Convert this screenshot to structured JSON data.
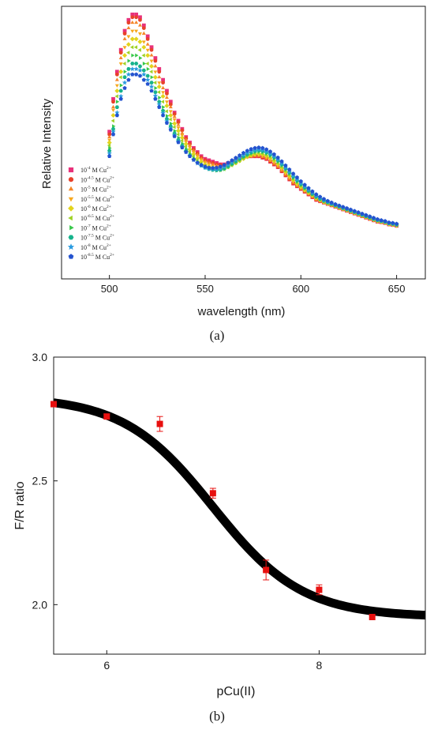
{
  "panel_a_label": "(a)",
  "panel_b_label": "(b)",
  "chart_data": [
    {
      "type": "scatter",
      "ylabel": "Relative Intensity",
      "xlabel": "wavelength (nm)",
      "xlim": [
        475,
        665
      ],
      "ylim": [
        0,
        1
      ],
      "xticks": [
        500,
        550,
        600,
        650
      ],
      "y_tick_labels_shown": false,
      "legend_placement": "lower-left",
      "wavelengths": [
        500,
        502,
        504,
        506,
        508,
        510,
        512,
        514,
        516,
        518,
        520,
        522,
        524,
        526,
        528,
        530,
        532,
        534,
        536,
        538,
        540,
        542,
        544,
        546,
        548,
        550,
        552,
        554,
        556,
        558,
        560,
        562,
        564,
        566,
        568,
        570,
        572,
        574,
        576,
        578,
        580,
        582,
        584,
        586,
        588,
        590,
        592,
        594,
        596,
        598,
        600,
        602,
        604,
        606,
        608,
        610,
        612,
        614,
        616,
        618,
        620,
        622,
        624,
        626,
        628,
        630,
        632,
        634,
        636,
        638,
        640,
        642,
        644,
        646,
        648,
        650
      ],
      "series": [
        {
          "name": "10^-4 M Cu2+",
          "exp": "-4",
          "color": "#e8317a",
          "marker": "square",
          "values": [
            0.54,
            0.66,
            0.76,
            0.84,
            0.91,
            0.95,
            0.97,
            0.97,
            0.96,
            0.93,
            0.89,
            0.85,
            0.81,
            0.77,
            0.73,
            0.69,
            0.65,
            0.61,
            0.58,
            0.55,
            0.52,
            0.5,
            0.48,
            0.465,
            0.45,
            0.44,
            0.435,
            0.43,
            0.425,
            0.42,
            0.42,
            0.425,
            0.43,
            0.435,
            0.44,
            0.445,
            0.45,
            0.45,
            0.45,
            0.45,
            0.445,
            0.44,
            0.43,
            0.42,
            0.41,
            0.395,
            0.38,
            0.365,
            0.35,
            0.34,
            0.33,
            0.32,
            0.31,
            0.3,
            0.29,
            0.285,
            0.28,
            0.275,
            0.27,
            0.265,
            0.26,
            0.255,
            0.25,
            0.245,
            0.24,
            0.235,
            0.23,
            0.225,
            0.22,
            0.215,
            0.21,
            0.208,
            0.205,
            0.2,
            0.198,
            0.195
          ]
        },
        {
          "name": "10^-4.5 M Cu2+",
          "exp": "-4.5",
          "color": "#e8402a",
          "marker": "circle",
          "values": [
            0.53,
            0.65,
            0.75,
            0.83,
            0.9,
            0.94,
            0.96,
            0.96,
            0.95,
            0.92,
            0.88,
            0.84,
            0.8,
            0.76,
            0.72,
            0.68,
            0.64,
            0.605,
            0.575,
            0.545,
            0.515,
            0.495,
            0.475,
            0.46,
            0.445,
            0.435,
            0.43,
            0.425,
            0.42,
            0.418,
            0.418,
            0.422,
            0.428,
            0.433,
            0.438,
            0.443,
            0.448,
            0.45,
            0.45,
            0.45,
            0.445,
            0.44,
            0.43,
            0.42,
            0.41,
            0.395,
            0.38,
            0.365,
            0.35,
            0.34,
            0.33,
            0.32,
            0.31,
            0.3,
            0.29,
            0.285,
            0.28,
            0.275,
            0.27,
            0.265,
            0.26,
            0.255,
            0.25,
            0.245,
            0.24,
            0.235,
            0.23,
            0.225,
            0.22,
            0.215,
            0.21,
            0.208,
            0.205,
            0.2,
            0.198,
            0.195
          ]
        },
        {
          "name": "10^-5 M Cu2+",
          "exp": "-5",
          "color": "#f5862a",
          "marker": "triangle-up",
          "values": [
            0.52,
            0.63,
            0.73,
            0.81,
            0.88,
            0.92,
            0.94,
            0.94,
            0.93,
            0.9,
            0.86,
            0.82,
            0.78,
            0.74,
            0.7,
            0.665,
            0.63,
            0.595,
            0.565,
            0.535,
            0.51,
            0.49,
            0.47,
            0.455,
            0.44,
            0.43,
            0.425,
            0.42,
            0.415,
            0.413,
            0.413,
            0.418,
            0.425,
            0.43,
            0.436,
            0.442,
            0.447,
            0.45,
            0.452,
            0.452,
            0.448,
            0.442,
            0.433,
            0.423,
            0.412,
            0.398,
            0.383,
            0.368,
            0.353,
            0.342,
            0.332,
            0.322,
            0.312,
            0.302,
            0.292,
            0.286,
            0.28,
            0.275,
            0.27,
            0.265,
            0.26,
            0.255,
            0.25,
            0.245,
            0.24,
            0.235,
            0.23,
            0.225,
            0.22,
            0.215,
            0.21,
            0.208,
            0.205,
            0.2,
            0.198,
            0.195
          ]
        },
        {
          "name": "10^-5.5 M Cu2+",
          "exp": "-5.5",
          "color": "#f7a81e",
          "marker": "triangle-down",
          "values": [
            0.51,
            0.62,
            0.71,
            0.79,
            0.85,
            0.89,
            0.91,
            0.91,
            0.9,
            0.87,
            0.84,
            0.8,
            0.76,
            0.72,
            0.685,
            0.65,
            0.615,
            0.585,
            0.555,
            0.527,
            0.503,
            0.483,
            0.465,
            0.45,
            0.437,
            0.427,
            0.42,
            0.415,
            0.41,
            0.408,
            0.41,
            0.415,
            0.422,
            0.428,
            0.435,
            0.442,
            0.448,
            0.452,
            0.455,
            0.455,
            0.452,
            0.446,
            0.438,
            0.428,
            0.416,
            0.402,
            0.387,
            0.372,
            0.357,
            0.345,
            0.334,
            0.324,
            0.314,
            0.304,
            0.294,
            0.287,
            0.281,
            0.276,
            0.271,
            0.266,
            0.261,
            0.256,
            0.251,
            0.246,
            0.241,
            0.236,
            0.231,
            0.226,
            0.221,
            0.216,
            0.211,
            0.208,
            0.205,
            0.2,
            0.198,
            0.195
          ]
        },
        {
          "name": "10^-6 M Cu2+",
          "exp": "-6",
          "color": "#e2d41c",
          "marker": "diamond",
          "values": [
            0.5,
            0.6,
            0.69,
            0.76,
            0.82,
            0.86,
            0.88,
            0.88,
            0.87,
            0.85,
            0.82,
            0.78,
            0.74,
            0.705,
            0.67,
            0.635,
            0.6,
            0.57,
            0.543,
            0.518,
            0.495,
            0.475,
            0.458,
            0.443,
            0.43,
            0.42,
            0.413,
            0.408,
            0.404,
            0.403,
            0.405,
            0.411,
            0.418,
            0.425,
            0.433,
            0.441,
            0.448,
            0.453,
            0.457,
            0.458,
            0.456,
            0.451,
            0.443,
            0.433,
            0.421,
            0.407,
            0.392,
            0.377,
            0.362,
            0.349,
            0.337,
            0.326,
            0.316,
            0.306,
            0.296,
            0.289,
            0.282,
            0.277,
            0.272,
            0.267,
            0.262,
            0.257,
            0.252,
            0.247,
            0.242,
            0.237,
            0.232,
            0.227,
            0.222,
            0.217,
            0.212,
            0.209,
            0.206,
            0.201,
            0.199,
            0.196
          ]
        },
        {
          "name": "10^-6.5 M Cu2+",
          "exp": "-6.5",
          "color": "#9ed226",
          "marker": "triangle-left",
          "values": [
            0.49,
            0.58,
            0.67,
            0.74,
            0.79,
            0.83,
            0.85,
            0.85,
            0.84,
            0.82,
            0.79,
            0.76,
            0.72,
            0.685,
            0.65,
            0.615,
            0.585,
            0.557,
            0.53,
            0.507,
            0.486,
            0.467,
            0.45,
            0.436,
            0.424,
            0.414,
            0.407,
            0.402,
            0.399,
            0.399,
            0.402,
            0.409,
            0.417,
            0.425,
            0.433,
            0.442,
            0.45,
            0.456,
            0.46,
            0.462,
            0.46,
            0.455,
            0.447,
            0.437,
            0.425,
            0.411,
            0.396,
            0.381,
            0.366,
            0.353,
            0.341,
            0.329,
            0.318,
            0.308,
            0.298,
            0.29,
            0.283,
            0.278,
            0.273,
            0.268,
            0.263,
            0.258,
            0.253,
            0.248,
            0.243,
            0.238,
            0.233,
            0.228,
            0.223,
            0.218,
            0.213,
            0.21,
            0.207,
            0.202,
            0.2,
            0.197
          ]
        },
        {
          "name": "10^-7 M Cu2+",
          "exp": "-7",
          "color": "#38c84a",
          "marker": "triangle-right",
          "values": [
            0.48,
            0.56,
            0.65,
            0.71,
            0.76,
            0.8,
            0.82,
            0.82,
            0.81,
            0.79,
            0.77,
            0.74,
            0.7,
            0.665,
            0.63,
            0.598,
            0.57,
            0.543,
            0.518,
            0.496,
            0.476,
            0.458,
            0.442,
            0.429,
            0.418,
            0.409,
            0.403,
            0.399,
            0.397,
            0.398,
            0.402,
            0.41,
            0.419,
            0.428,
            0.437,
            0.446,
            0.454,
            0.46,
            0.465,
            0.467,
            0.465,
            0.46,
            0.452,
            0.442,
            0.43,
            0.416,
            0.401,
            0.386,
            0.371,
            0.357,
            0.344,
            0.332,
            0.321,
            0.31,
            0.3,
            0.292,
            0.285,
            0.279,
            0.274,
            0.269,
            0.264,
            0.259,
            0.254,
            0.249,
            0.244,
            0.239,
            0.234,
            0.229,
            0.224,
            0.219,
            0.214,
            0.211,
            0.208,
            0.203,
            0.201,
            0.198
          ]
        },
        {
          "name": "10^-7.5 M Cu2+",
          "exp": "-7.5",
          "color": "#16b38c",
          "marker": "hexagon",
          "values": [
            0.47,
            0.55,
            0.63,
            0.69,
            0.74,
            0.77,
            0.79,
            0.79,
            0.78,
            0.765,
            0.745,
            0.72,
            0.685,
            0.65,
            0.617,
            0.587,
            0.56,
            0.534,
            0.51,
            0.489,
            0.47,
            0.453,
            0.438,
            0.426,
            0.416,
            0.408,
            0.403,
            0.4,
            0.399,
            0.401,
            0.406,
            0.414,
            0.423,
            0.432,
            0.441,
            0.45,
            0.458,
            0.464,
            0.469,
            0.471,
            0.469,
            0.464,
            0.456,
            0.446,
            0.434,
            0.42,
            0.405,
            0.39,
            0.375,
            0.361,
            0.348,
            0.335,
            0.323,
            0.312,
            0.302,
            0.294,
            0.287,
            0.281,
            0.275,
            0.27,
            0.265,
            0.26,
            0.255,
            0.25,
            0.245,
            0.24,
            0.235,
            0.23,
            0.225,
            0.22,
            0.215,
            0.212,
            0.209,
            0.204,
            0.202,
            0.199
          ]
        },
        {
          "name": "10^-8 M Cu2+",
          "exp": "-8",
          "color": "#2b9be0",
          "marker": "star",
          "values": [
            0.46,
            0.54,
            0.61,
            0.67,
            0.72,
            0.75,
            0.77,
            0.77,
            0.765,
            0.75,
            0.73,
            0.705,
            0.672,
            0.64,
            0.608,
            0.578,
            0.552,
            0.527,
            0.504,
            0.484,
            0.466,
            0.45,
            0.436,
            0.424,
            0.415,
            0.408,
            0.404,
            0.402,
            0.402,
            0.405,
            0.411,
            0.419,
            0.428,
            0.437,
            0.446,
            0.455,
            0.463,
            0.469,
            0.473,
            0.475,
            0.473,
            0.468,
            0.46,
            0.45,
            0.438,
            0.424,
            0.409,
            0.394,
            0.379,
            0.365,
            0.352,
            0.339,
            0.327,
            0.316,
            0.305,
            0.297,
            0.289,
            0.283,
            0.277,
            0.272,
            0.267,
            0.262,
            0.257,
            0.252,
            0.247,
            0.242,
            0.237,
            0.232,
            0.227,
            0.222,
            0.217,
            0.213,
            0.21,
            0.205,
            0.203,
            0.2
          ]
        },
        {
          "name": "10^-8.5 M Cu2+",
          "exp": "-8.5",
          "color": "#2453cf",
          "marker": "pentagon",
          "values": [
            0.45,
            0.53,
            0.6,
            0.66,
            0.7,
            0.73,
            0.75,
            0.75,
            0.745,
            0.73,
            0.715,
            0.69,
            0.66,
            0.63,
            0.6,
            0.572,
            0.547,
            0.523,
            0.501,
            0.482,
            0.465,
            0.45,
            0.437,
            0.426,
            0.418,
            0.412,
            0.408,
            0.407,
            0.408,
            0.412,
            0.418,
            0.426,
            0.435,
            0.444,
            0.453,
            0.462,
            0.47,
            0.476,
            0.48,
            0.482,
            0.48,
            0.475,
            0.467,
            0.457,
            0.445,
            0.431,
            0.416,
            0.401,
            0.386,
            0.372,
            0.358,
            0.345,
            0.333,
            0.321,
            0.31,
            0.301,
            0.293,
            0.286,
            0.28,
            0.274,
            0.269,
            0.264,
            0.259,
            0.254,
            0.249,
            0.244,
            0.239,
            0.234,
            0.229,
            0.224,
            0.219,
            0.215,
            0.212,
            0.207,
            0.205,
            0.202
          ]
        }
      ]
    },
    {
      "type": "scatter",
      "xlabel": "pCu(II)",
      "ylabel": "F/R ratio",
      "xlim": [
        5.5,
        9.0
      ],
      "ylim": [
        1.8,
        3.0
      ],
      "xticks": [
        6,
        8
      ],
      "yticks": [
        2.0,
        2.5,
        3.0
      ],
      "ytick_labels": [
        "2.0",
        "2.5",
        "3.0"
      ],
      "points": [
        {
          "x": 5.5,
          "y": 2.81,
          "err": 0.0
        },
        {
          "x": 6.0,
          "y": 2.76,
          "err": 0.01
        },
        {
          "x": 6.5,
          "y": 2.73,
          "err": 0.03
        },
        {
          "x": 7.0,
          "y": 2.45,
          "err": 0.02
        },
        {
          "x": 7.5,
          "y": 2.14,
          "err": 0.04
        },
        {
          "x": 8.0,
          "y": 2.06,
          "err": 0.02
        },
        {
          "x": 8.5,
          "y": 1.95,
          "err": 0.0
        }
      ],
      "point_color": "#e8100f",
      "fit": {
        "type": "sigmoid",
        "top": 2.84,
        "bottom": 1.95,
        "x0": 7.0,
        "dx": 0.42,
        "color": "#000000"
      }
    }
  ]
}
